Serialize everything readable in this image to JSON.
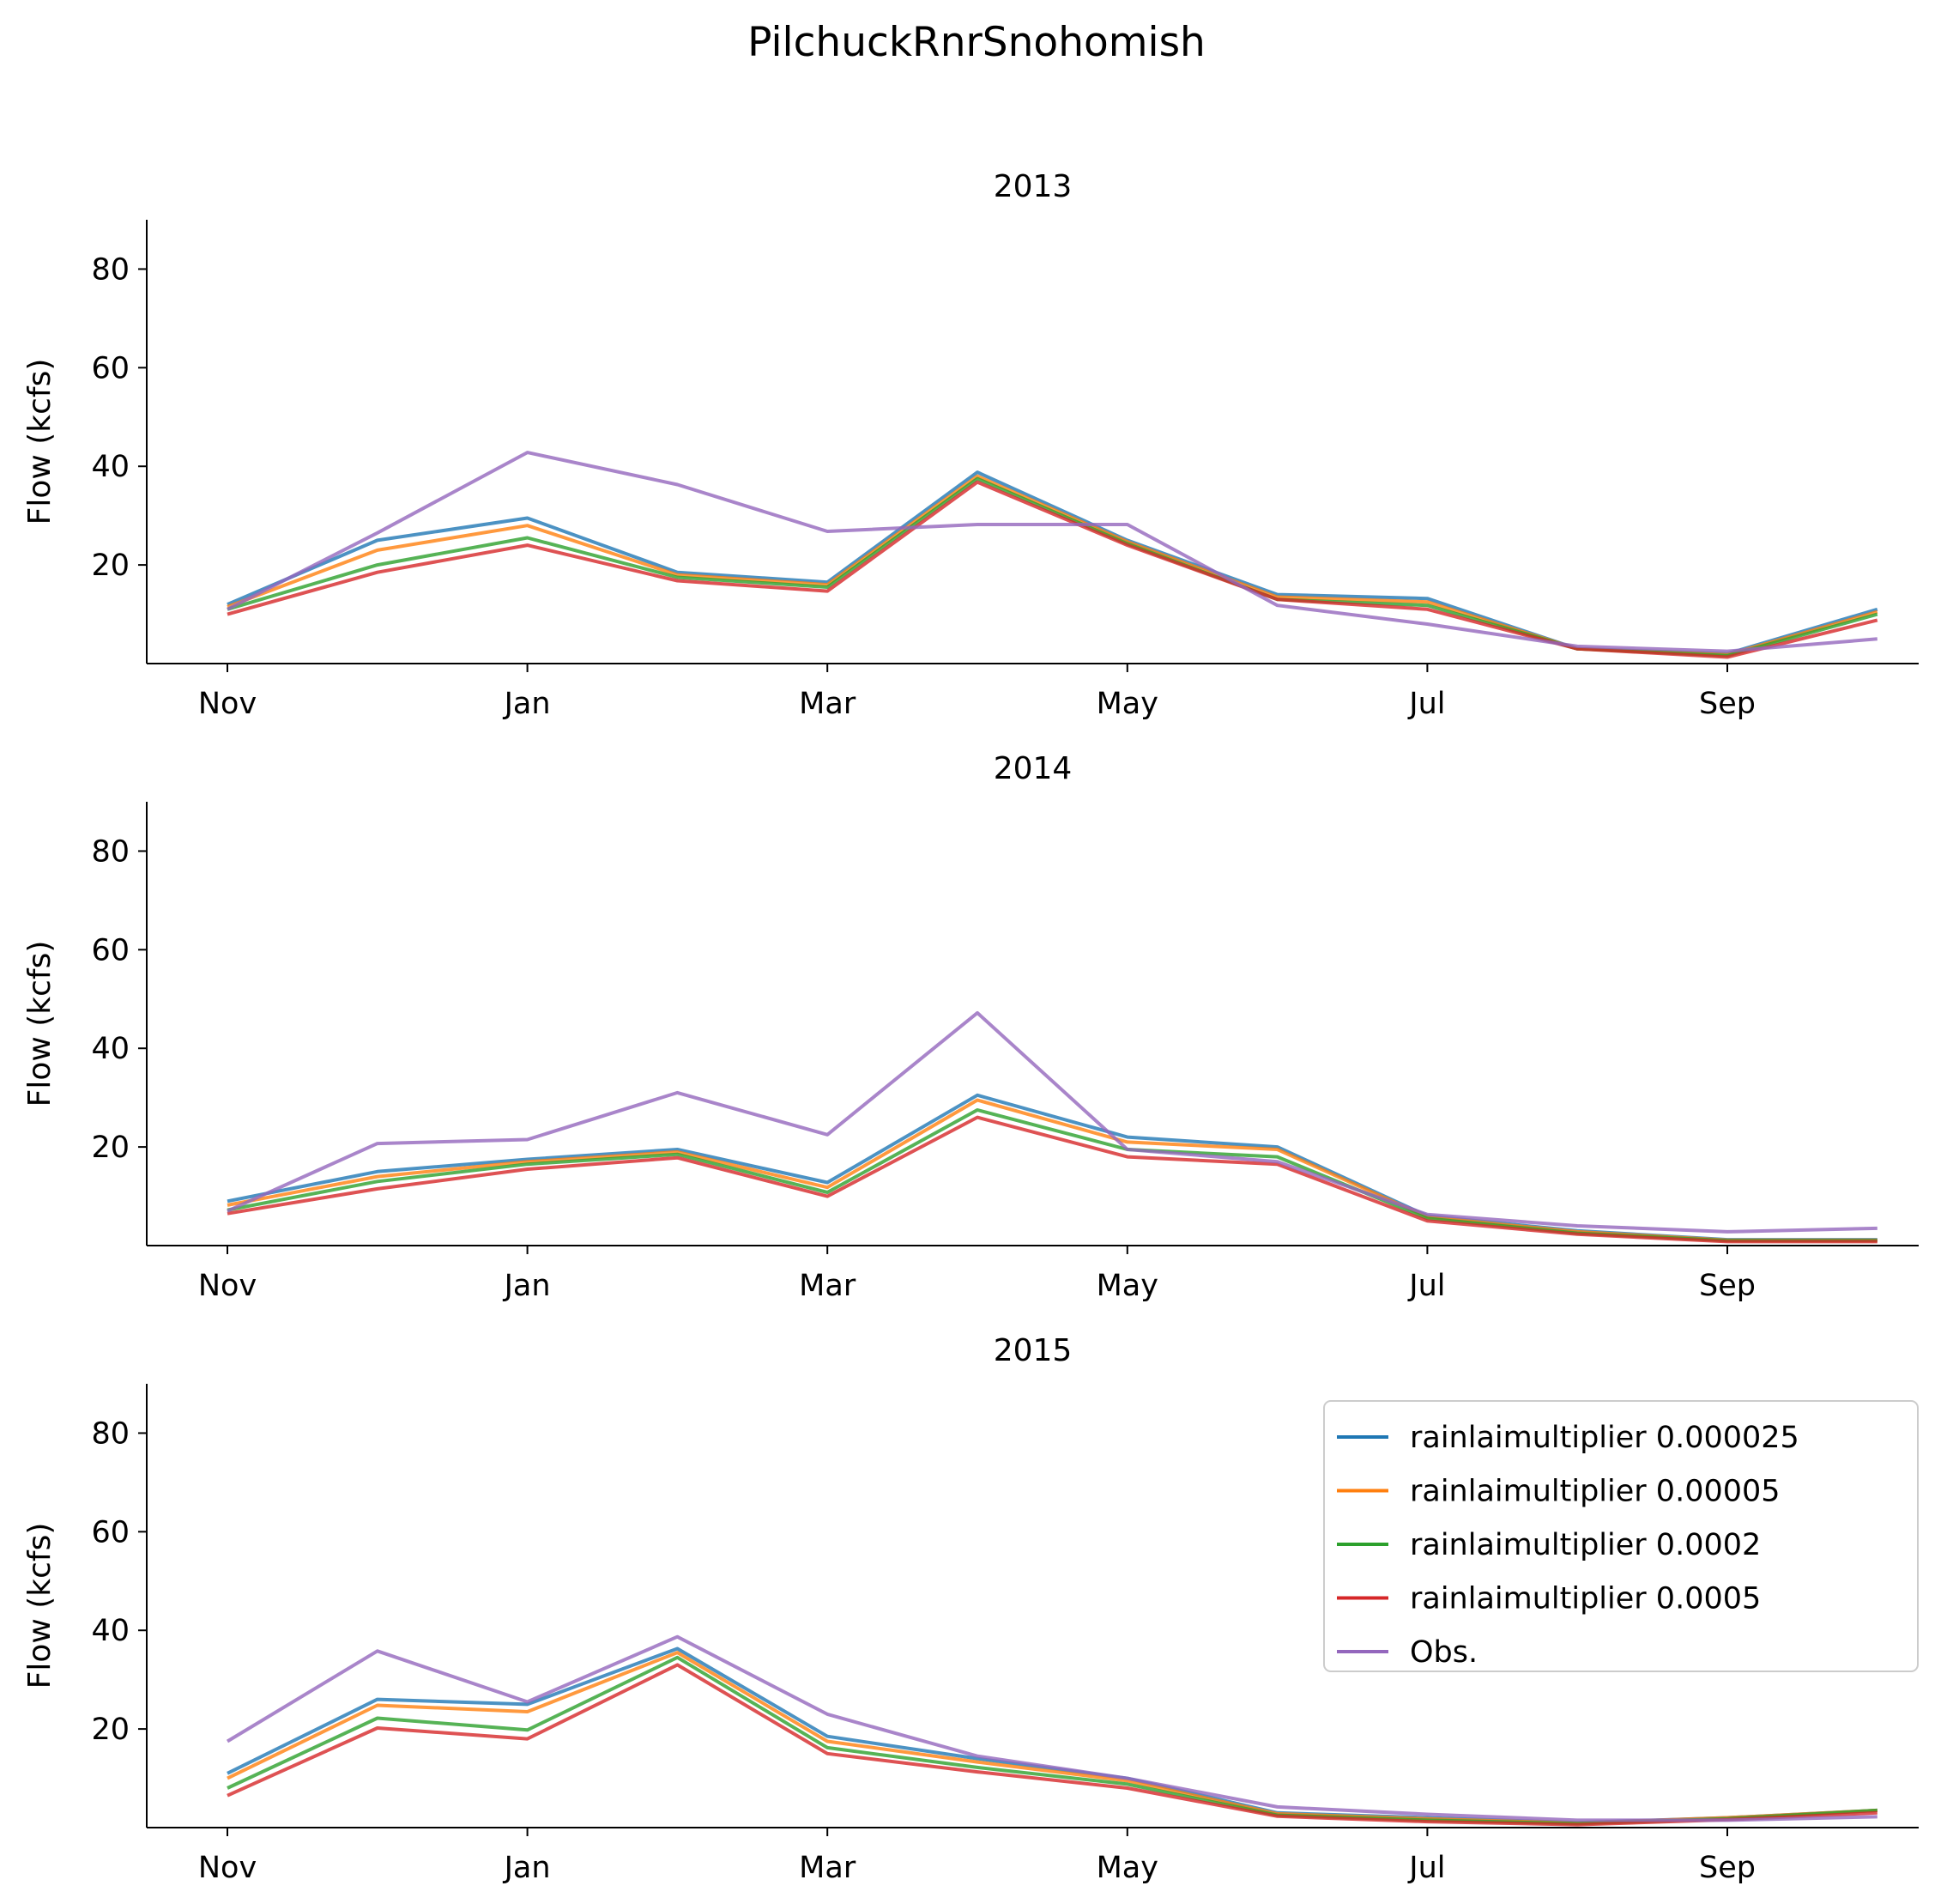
{
  "figure": {
    "title": "PilchuckRnrSnohomish"
  },
  "chart_data": [
    {
      "type": "line",
      "title": "2013",
      "ylabel": "Flow (kcfs)",
      "xlabel": "",
      "x": [
        "Nov",
        "Dec",
        "Jan",
        "Feb",
        "Mar",
        "Apr",
        "May",
        "Jun",
        "Jul",
        "Aug",
        "Sep",
        "Oct"
      ],
      "xticks": [
        "Nov",
        "Jan",
        "Mar",
        "May",
        "Jul",
        "Sep"
      ],
      "yticks": [
        20,
        40,
        60,
        80
      ],
      "ylim": [
        0,
        90
      ],
      "series": [
        {
          "name": "rainlaimultiplier 0.000025",
          "color": "#1f77b4",
          "values": [
            12,
            25,
            29.5,
            18.5,
            16.5,
            38.8,
            25,
            14,
            13.2,
            3,
            2,
            11
          ]
        },
        {
          "name": "rainlaimultiplier 0.00005",
          "color": "#ff7f0e",
          "values": [
            11.5,
            23,
            28,
            18,
            16,
            38,
            24.7,
            13.5,
            12.5,
            3,
            1.8,
            10.5
          ]
        },
        {
          "name": "rainlaimultiplier 0.0002",
          "color": "#2ca02c",
          "values": [
            11,
            20,
            25.5,
            17.5,
            15.5,
            37.5,
            24.3,
            13,
            11.8,
            3,
            1.6,
            10
          ]
        },
        {
          "name": "rainlaimultiplier 0.0005",
          "color": "#d62728",
          "values": [
            10,
            18.5,
            24,
            16.8,
            14.7,
            36.8,
            24,
            13,
            11,
            3,
            1.3,
            8.8
          ]
        },
        {
          "name": "Obs.",
          "color": "#9467bd",
          "values": [
            11,
            26.5,
            42.8,
            36.3,
            26.8,
            28.2,
            28.2,
            11.8,
            8,
            3.5,
            2.5,
            5
          ]
        }
      ]
    },
    {
      "type": "line",
      "title": "2014",
      "ylabel": "Flow (kcfs)",
      "xlabel": "",
      "x": [
        "Nov",
        "Dec",
        "Jan",
        "Feb",
        "Mar",
        "Apr",
        "May",
        "Jun",
        "Jul",
        "Aug",
        "Sep",
        "Oct"
      ],
      "xticks": [
        "Nov",
        "Jan",
        "Mar",
        "May",
        "Jul",
        "Sep"
      ],
      "yticks": [
        20,
        40,
        60,
        80
      ],
      "ylim": [
        0,
        90
      ],
      "series": [
        {
          "name": "rainlaimultiplier 0.000025",
          "color": "#1f77b4",
          "values": [
            9,
            15,
            17.5,
            19.5,
            12.8,
            30.5,
            22,
            20,
            6,
            3,
            1.2,
            1.2
          ]
        },
        {
          "name": "rainlaimultiplier 0.00005",
          "color": "#ff7f0e",
          "values": [
            8.2,
            14,
            17,
            19,
            11.8,
            29.5,
            21,
            19.5,
            5.8,
            2.8,
            1.1,
            1.1
          ]
        },
        {
          "name": "rainlaimultiplier 0.0002",
          "color": "#2ca02c",
          "values": [
            7.2,
            13,
            16.5,
            18.5,
            10.8,
            27.5,
            19.5,
            18,
            5.5,
            2.5,
            1,
            1
          ]
        },
        {
          "name": "rainlaimultiplier 0.0005",
          "color": "#d62728",
          "values": [
            6.5,
            11.5,
            15.5,
            17.8,
            10,
            26,
            18,
            16.5,
            5,
            2.3,
            0.8,
            0.8
          ]
        },
        {
          "name": "Obs.",
          "color": "#9467bd",
          "values": [
            7,
            20.7,
            21.5,
            31,
            22.5,
            47.2,
            19.5,
            17,
            6.3,
            4,
            2.8,
            3.5
          ]
        }
      ]
    },
    {
      "type": "line",
      "title": "2015",
      "ylabel": "Flow (kcfs)",
      "xlabel": "",
      "x": [
        "Nov",
        "Dec",
        "Jan",
        "Feb",
        "Mar",
        "Apr",
        "May",
        "Jun",
        "Jul",
        "Aug",
        "Sep",
        "Oct"
      ],
      "xticks": [
        "Nov",
        "Jan",
        "Mar",
        "May",
        "Jul",
        "Sep"
      ],
      "yticks": [
        20,
        40,
        60,
        80
      ],
      "ylim": [
        0,
        90
      ],
      "legend": "top-right",
      "series": [
        {
          "name": "rainlaimultiplier 0.000025",
          "color": "#1f77b4",
          "values": [
            11,
            26,
            25,
            36.3,
            18.5,
            14,
            10,
            3,
            2,
            1,
            2,
            3.5
          ]
        },
        {
          "name": "rainlaimultiplier 0.00005",
          "color": "#ff7f0e",
          "values": [
            10,
            24.8,
            23.5,
            35.5,
            17.5,
            13.3,
            9.5,
            2.8,
            1.8,
            0.9,
            2,
            3.5
          ]
        },
        {
          "name": "rainlaimultiplier 0.0002",
          "color": "#2ca02c",
          "values": [
            8,
            22.2,
            19.8,
            34.5,
            16.2,
            12.2,
            8.8,
            2.5,
            1.5,
            0.8,
            1.8,
            3.5
          ]
        },
        {
          "name": "rainlaimultiplier 0.0005",
          "color": "#d62728",
          "values": [
            6.5,
            20.2,
            18,
            33,
            15,
            11.3,
            8,
            2.3,
            1.2,
            0.6,
            1.6,
            3
          ]
        },
        {
          "name": "Obs.",
          "color": "#9467bd",
          "values": [
            17.5,
            35.8,
            25.5,
            38.7,
            23,
            14.5,
            10,
            4.2,
            2.7,
            1.5,
            1.5,
            2.2
          ]
        }
      ]
    }
  ]
}
